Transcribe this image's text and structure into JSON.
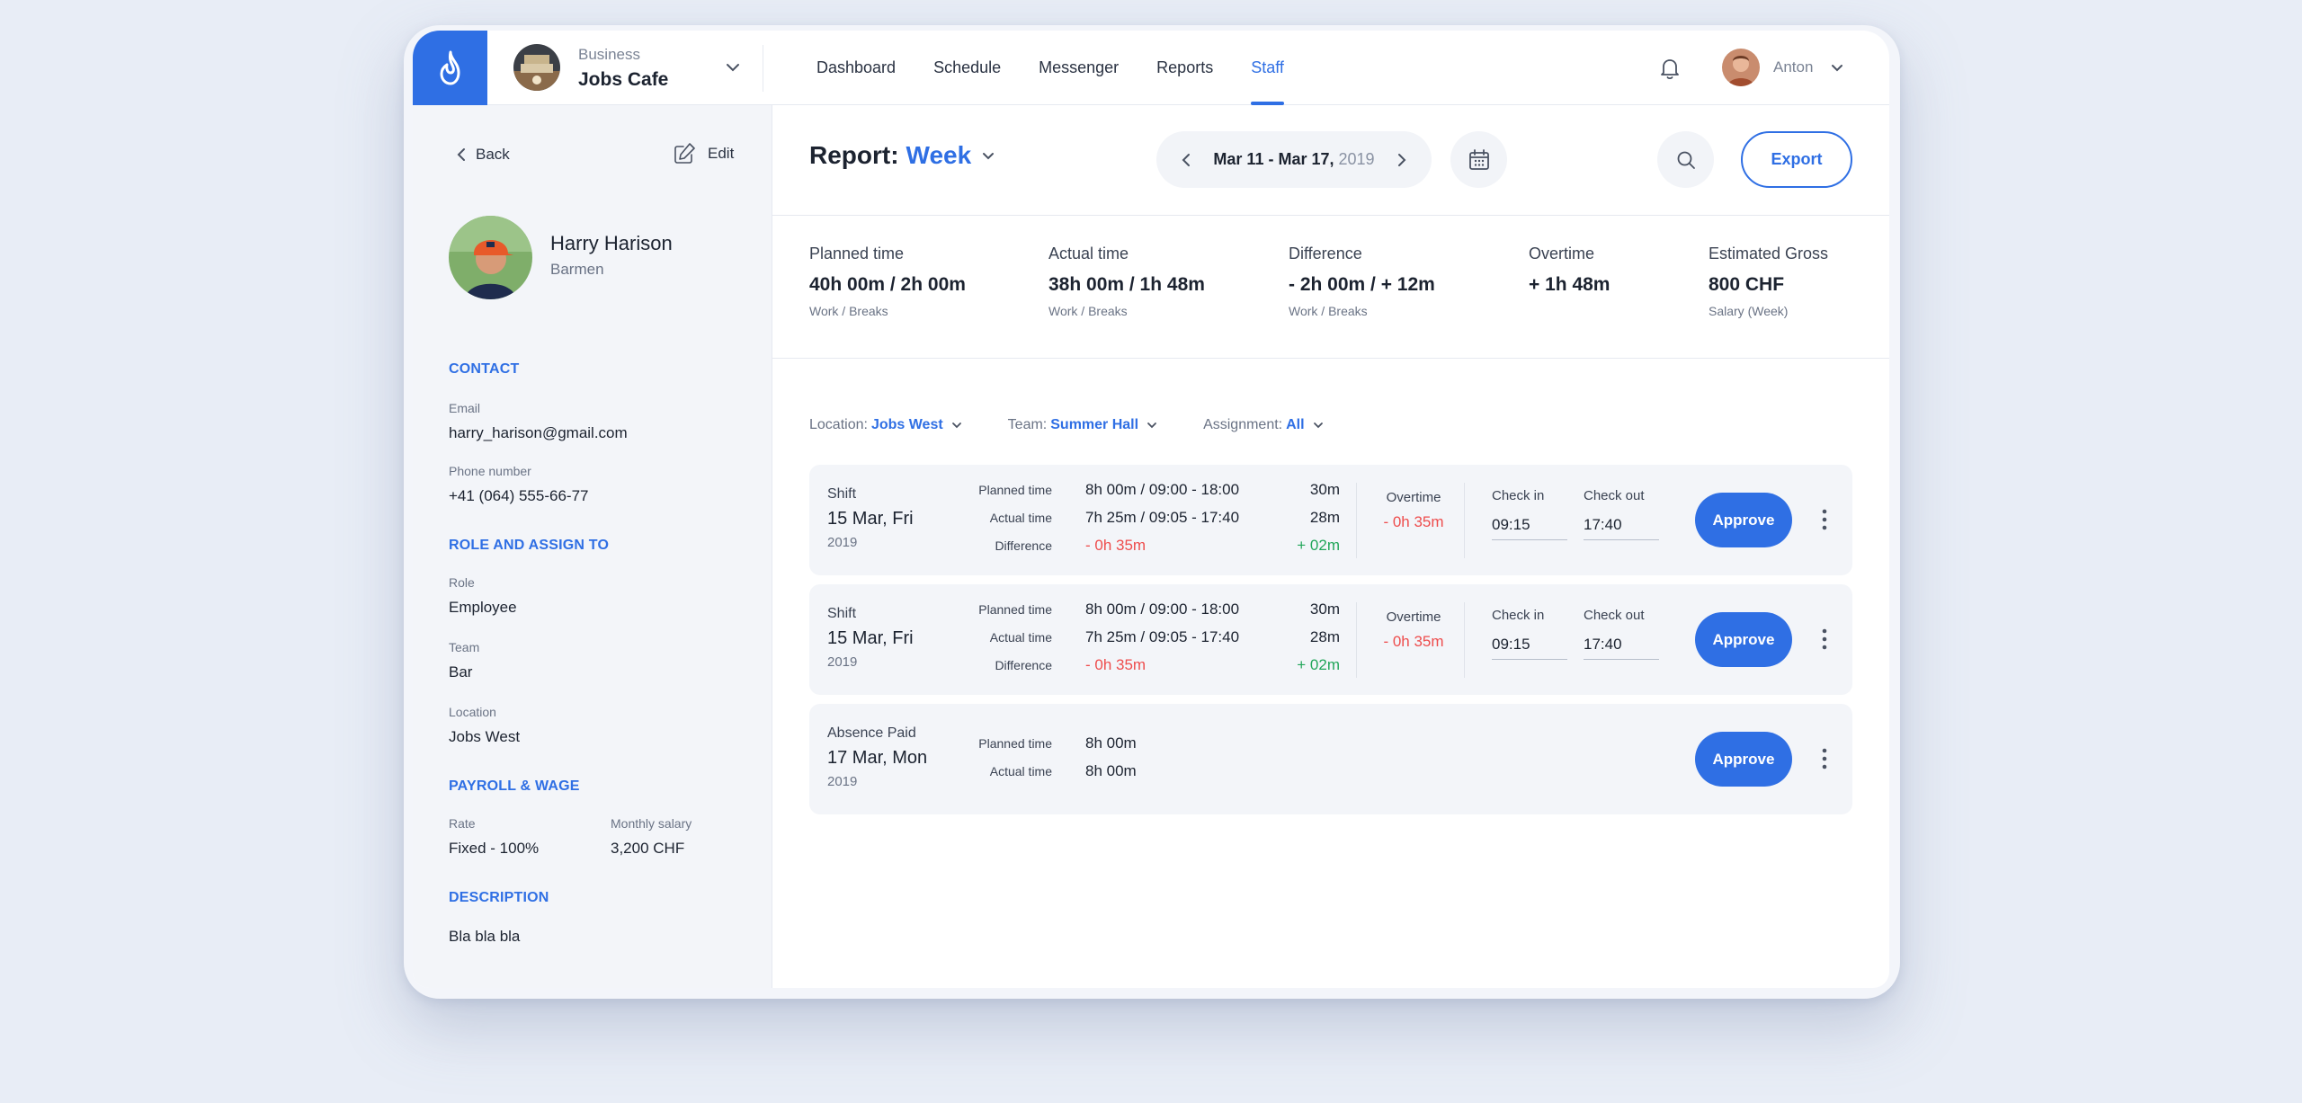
{
  "topbar": {
    "business_label": "Business",
    "business_name": "Jobs Cafe",
    "nav": [
      "Dashboard",
      "Schedule",
      "Messenger",
      "Reports",
      "Staff"
    ],
    "active_nav": "Staff",
    "user_name": "Anton"
  },
  "sidebar": {
    "back_label": "Back",
    "edit_label": "Edit",
    "name": "Harry Harison",
    "position": "Barmen",
    "contact_title": "CONTACT",
    "email_label": "Email",
    "email": "harry_harison@gmail.com",
    "phone_label": "Phone number",
    "phone": "+41 (064) 555-66-77",
    "role_title": "ROLE AND ASSIGN TO",
    "role_label": "Role",
    "role": "Employee",
    "team_label": "Team",
    "team": "Bar",
    "location_label": "Location",
    "location": "Jobs West",
    "payroll_title": "PAYROLL & WAGE",
    "rate_label": "Rate",
    "rate": "Fixed - 100%",
    "salary_label": "Monthly salary",
    "salary": "3,200 CHF",
    "description_title": "DESCRIPTION",
    "description": "Bla bla bla"
  },
  "header": {
    "report_label": "Report:",
    "period": "Week",
    "range_dates": "Mar 11 - Mar 17,",
    "range_year": "2019",
    "export_label": "Export"
  },
  "summary": [
    {
      "label": "Planned time",
      "value": "40h 00m / 2h 00m",
      "sub": "Work / Breaks"
    },
    {
      "label": "Actual time",
      "value": "38h 00m / 1h 48m",
      "sub": "Work / Breaks"
    },
    {
      "label": "Difference",
      "value": "- 2h 00m / + 12m",
      "sub": "Work / Breaks"
    },
    {
      "label": "Overtime",
      "value": "+ 1h 48m",
      "sub": ""
    },
    {
      "label": "Estimated Gross",
      "value": "800 CHF",
      "sub": "Salary (Week)"
    }
  ],
  "filters": {
    "location_label": "Location:",
    "location_value": "Jobs West",
    "team_label": "Team:",
    "team_value": "Summer Hall",
    "assignment_label": "Assignment:",
    "assignment_value": "All"
  },
  "shifts": [
    {
      "kind": "Shift",
      "date": "15 Mar, Fri",
      "year": "2019",
      "planned_label": "Planned time",
      "planned": "8h 00m / 09:00 - 18:00",
      "planned_right": "30m",
      "actual_label": "Actual time",
      "actual": "7h 25m / 09:05 - 17:40",
      "actual_right": "28m",
      "diff_label": "Difference",
      "diff": "- 0h 35m",
      "diff_right": "+ 02m",
      "overtime_label": "Overtime",
      "overtime": "- 0h 35m",
      "checkin_label": "Check in",
      "checkin": "09:15",
      "checkout_label": "Check out",
      "checkout": "17:40",
      "approve_label": "Approve"
    },
    {
      "kind": "Shift",
      "date": "15 Mar, Fri",
      "year": "2019",
      "planned_label": "Planned time",
      "planned": "8h 00m / 09:00 - 18:00",
      "planned_right": "30m",
      "actual_label": "Actual time",
      "actual": "7h 25m / 09:05 - 17:40",
      "actual_right": "28m",
      "diff_label": "Difference",
      "diff": "- 0h 35m",
      "diff_right": "+ 02m",
      "overtime_label": "Overtime",
      "overtime": "- 0h 35m",
      "checkin_label": "Check in",
      "checkin": "09:15",
      "checkout_label": "Check out",
      "checkout": "17:40",
      "approve_label": "Approve"
    },
    {
      "kind": "Absence Paid",
      "date": "17 Mar, Mon",
      "year": "2019",
      "planned_label": "Planned time",
      "planned": "8h 00m",
      "actual_label": "Actual time",
      "actual": "8h 00m",
      "approve_label": "Approve"
    }
  ],
  "colors": {
    "accent": "#2f6fe4",
    "negative": "#ee4d4d",
    "positive": "#22a65a",
    "background": "#e8edf6"
  },
  "icons": [
    "logo-icon",
    "chevron-down-icon",
    "bell-icon",
    "chevron-left-icon",
    "edit-icon",
    "chevron-right-icon",
    "calendar-icon",
    "search-icon",
    "more-vertical-icon"
  ]
}
